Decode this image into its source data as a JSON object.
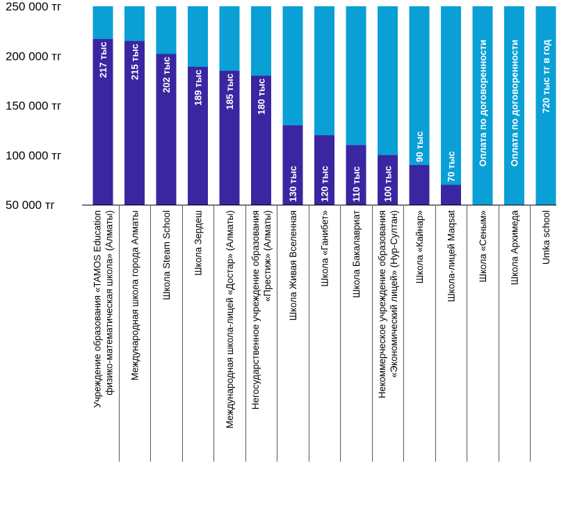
{
  "chart_data": {
    "type": "bar",
    "stacked": true,
    "ylim": [
      50000,
      250000
    ],
    "yticks": [
      50000,
      100000,
      150000,
      200000,
      250000
    ],
    "ytick_labels": [
      "50 000 тг",
      "100 000 тг",
      "150 000 тг",
      "200 000 тг",
      "250 000 тг"
    ],
    "grid": false,
    "colors": {
      "value": "#3a26a1",
      "remainder": "#0aa0d6",
      "axis": "#000000",
      "separator": "#555555"
    },
    "categories": [
      [
        "Учреждение образования «TAMOS Education",
        "физико-математическая школа» (Алматы)"
      ],
      [
        "Международная школа города Алматы"
      ],
      [
        "Школа Steam School"
      ],
      [
        "Школа Зердеш"
      ],
      [
        "Международная школа-лицей «Достар» (Алматы)"
      ],
      [
        "Негосударственное учреждение образования",
        "«Престиж» (Алматы)"
      ],
      [
        "Школа Живая Вселенная"
      ],
      [
        "Школа «Ганибет»"
      ],
      [
        "Школа Бакалавриат"
      ],
      [
        "Некоммерческое учреждение образования",
        "«Экономический лицей» (Нур-Султан)"
      ],
      [
        "Школа «Кайнар»"
      ],
      [
        "Школа-лицей Maqsat"
      ],
      [
        "Школа «Сеным»"
      ],
      [
        "Школа Архимеда"
      ],
      [
        "Umka school"
      ]
    ],
    "values": [
      217000,
      215000,
      202000,
      189000,
      185000,
      180000,
      130000,
      120000,
      110000,
      100000,
      90000,
      70000,
      null,
      null,
      null
    ],
    "data_labels": [
      "217 тыс",
      "215 тыс",
      "202 тыс",
      "189 тыс",
      "185 тыс",
      "180 тыс",
      "130 тыс",
      "120 тыс",
      "110 тыс",
      "100 тыс",
      "90 тыс",
      "70 тыс",
      "Оплата по договоренности",
      "Оплата по договоренности",
      "720 тыс тг в год"
    ],
    "label_position": [
      "inside-top",
      "inside-top",
      "inside-top",
      "inside-top",
      "inside-top",
      "inside-top",
      "inside-bottom",
      "inside-bottom",
      "inside-bottom",
      "inside-bottom",
      "above-bar",
      "above-bar",
      "top",
      "top",
      "top"
    ]
  }
}
